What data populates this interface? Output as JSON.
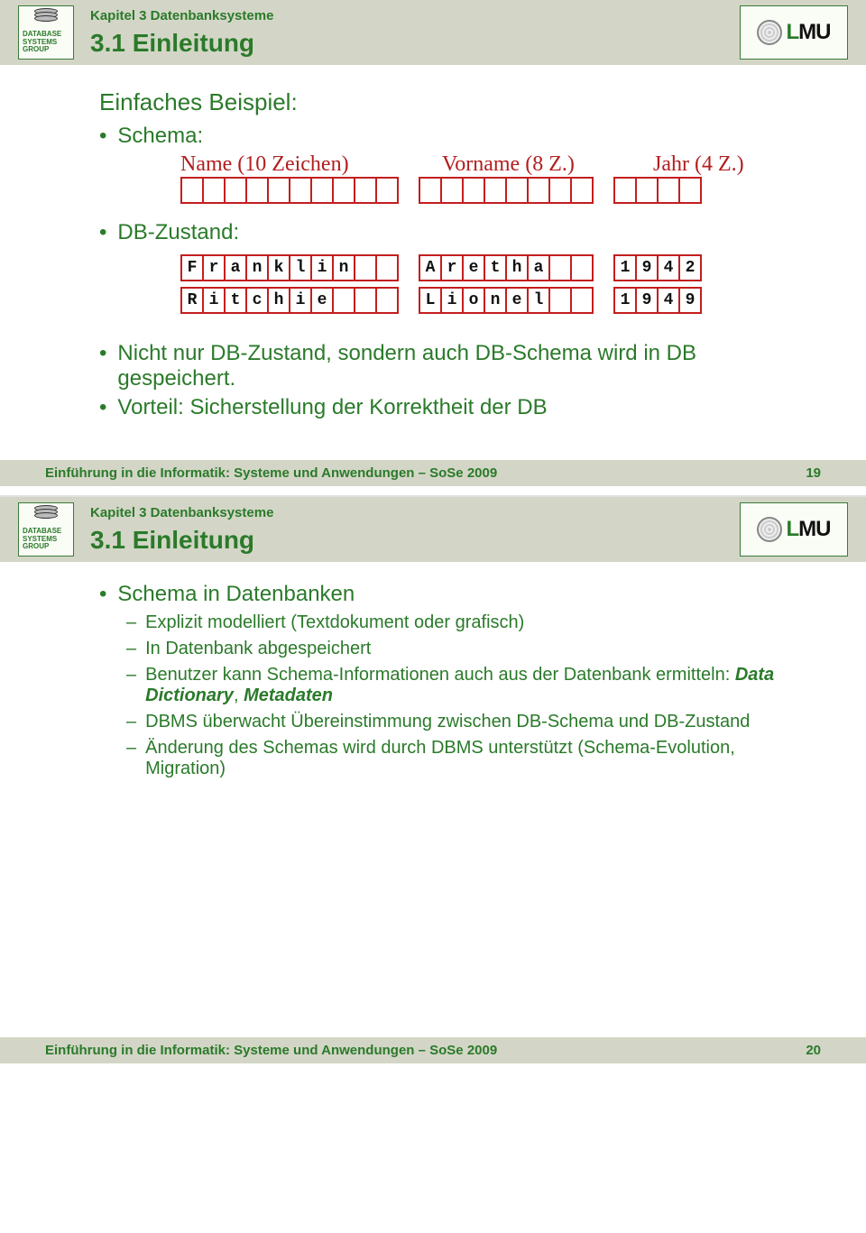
{
  "dsg_label": "DATABASE\nSYSTEMS\nGROUP",
  "lmu_label": "LMU",
  "slide19": {
    "chapter": "Kapitel 3 Datenbanksysteme",
    "section": "3.1 Einleitung",
    "heading": "Einfaches Beispiel:",
    "schema_label": "Schema:",
    "schema_cols": {
      "name": "Name (10 Zeichen)",
      "vorname": "Vorname (8 Z.)",
      "jahr": "Jahr (4 Z.)"
    },
    "schema_empty": {
      "name_len": 10,
      "vorname_len": 8,
      "jahr_len": 4
    },
    "zustand_label": "DB-Zustand:",
    "rows": [
      {
        "name": [
          "F",
          "r",
          "a",
          "n",
          "k",
          "l",
          "i",
          "n",
          "",
          ""
        ],
        "vorname": [
          "A",
          "r",
          "e",
          "t",
          "h",
          "a",
          "",
          ""
        ],
        "jahr": [
          "1",
          "9",
          "4",
          "2"
        ]
      },
      {
        "name": [
          "R",
          "i",
          "t",
          "c",
          "h",
          "i",
          "e",
          "",
          "",
          ""
        ],
        "vorname": [
          "L",
          "i",
          "o",
          "n",
          "e",
          "l",
          "",
          ""
        ],
        "jahr": [
          "1",
          "9",
          "4",
          "9"
        ]
      }
    ],
    "bullets": [
      "Nicht nur DB-Zustand, sondern auch DB-Schema wird in DB gespeichert.",
      "Vorteil: Sicherstellung der Korrektheit der DB"
    ],
    "footer": "Einführung in die Informatik: Systeme und Anwendungen – SoSe 2009",
    "page": "19"
  },
  "slide20": {
    "chapter": "Kapitel 3 Datenbanksysteme",
    "section": "3.1 Einleitung",
    "l1": "Schema in Datenbanken",
    "items": [
      {
        "text": "Explizit modelliert (Textdokument oder grafisch)"
      },
      {
        "text": "In Datenbank abgespeichert"
      },
      {
        "pre": "Benutzer kann Schema-Informationen auch aus der Datenbank ermitteln: ",
        "bold": "Data Dictionary",
        "mid": ", ",
        "bold2": "Metadaten"
      },
      {
        "text": "DBMS überwacht Übereinstimmung zwischen DB-Schema und DB-Zustand"
      },
      {
        "text": "Änderung des Schemas wird durch DBMS unterstützt (Schema-Evolution, Migration)"
      }
    ],
    "footer": "Einführung in die Informatik: Systeme und Anwendungen – SoSe 2009",
    "page": "20"
  },
  "colors": {
    "green": "#2a7a2a",
    "red": "#c41e1e",
    "band": "#d3d6c6"
  }
}
